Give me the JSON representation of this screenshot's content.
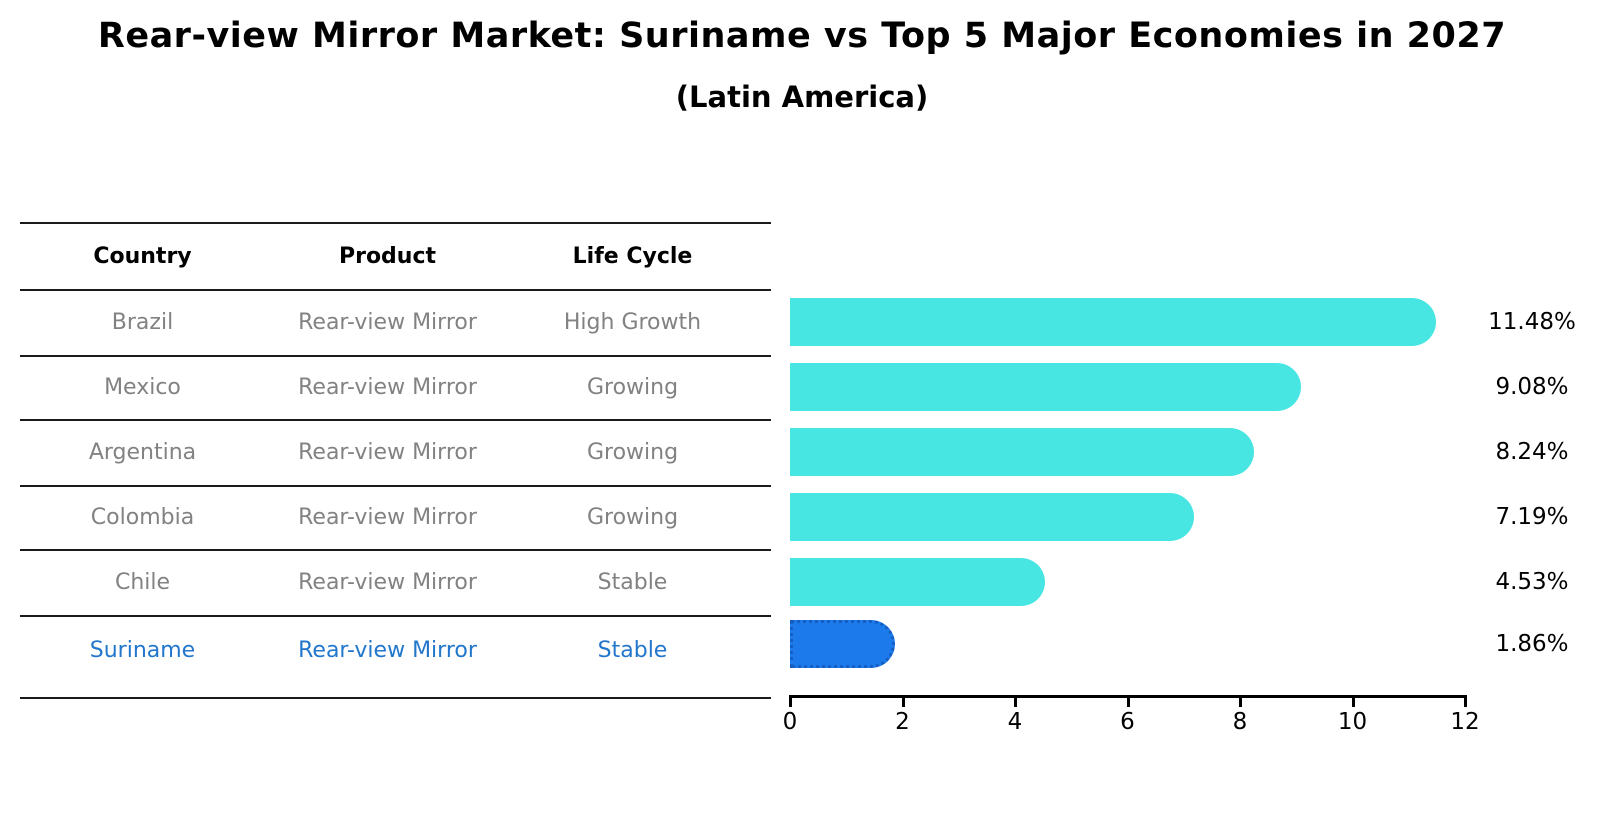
{
  "header": {
    "title": "Rear-view Mirror Market: Suriname vs Top 5 Major Economies in 2027",
    "subtitle": "(Latin America)"
  },
  "table": {
    "columns": [
      "Country",
      "Product",
      "Life Cycle"
    ],
    "rows": [
      {
        "country": "Brazil",
        "product": "Rear-view Mirror",
        "life_cycle": "High Growth",
        "highlight": false
      },
      {
        "country": "Mexico",
        "product": "Rear-view Mirror",
        "life_cycle": "Growing",
        "highlight": false
      },
      {
        "country": "Argentina",
        "product": "Rear-view Mirror",
        "life_cycle": "Growing",
        "highlight": false
      },
      {
        "country": "Colombia",
        "product": "Rear-view Mirror",
        "life_cycle": "Growing",
        "highlight": false
      },
      {
        "country": "Chile",
        "product": "Rear-view Mirror",
        "life_cycle": "Stable",
        "highlight": false
      },
      {
        "country": "Suriname",
        "product": "Rear-view Mirror",
        "life_cycle": "Stable",
        "highlight": true
      }
    ]
  },
  "chart_data": {
    "type": "bar",
    "orientation": "horizontal",
    "title": "Rear-view Mirror Market: Suriname vs Top 5 Major Economies in 2027",
    "subtitle": "(Latin America)",
    "categories": [
      "Brazil",
      "Mexico",
      "Argentina",
      "Colombia",
      "Chile",
      "Suriname"
    ],
    "values": [
      11.48,
      9.08,
      8.24,
      7.19,
      4.53,
      1.86
    ],
    "value_labels": [
      "11.48%",
      "9.08%",
      "8.24%",
      "7.19%",
      "4.53%",
      "1.86%"
    ],
    "xlim": [
      0,
      12
    ],
    "xticks": [
      0,
      2,
      4,
      6,
      8,
      10,
      12
    ],
    "highlight_index": 5,
    "grid": false,
    "legend": "none"
  },
  "colors": {
    "bar": "#47e6e2",
    "highlight_bar": "#1d7aea",
    "highlight_bar_border": "#155fc4",
    "highlight_text": "#2277cc",
    "table_text": "#828282",
    "heading_text": "#000000"
  }
}
